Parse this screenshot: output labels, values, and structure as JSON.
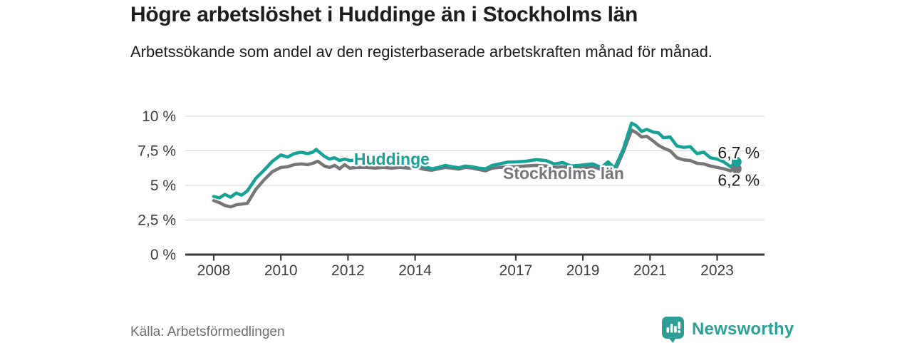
{
  "title": "Högre arbetslöshet i Huddinge än i Stockholms län",
  "subtitle": "Arbetssökande som andel av den registerbaserade arbetskraften månad för månad.",
  "source": "Källa: Arbetsförmedlingen",
  "branding": {
    "logo_text": "Newsworthy"
  },
  "colors": {
    "huddinge": "#16a296",
    "stockholm": "#76767a",
    "grid": "#dcdcdc",
    "axis": "#3a3a3a",
    "tick_text": "#3d3d3d",
    "value_text": "#1d1d1b",
    "brand_teal": "#2f9f95"
  },
  "chart_data": {
    "type": "line",
    "title": "Högre arbetslöshet i Huddinge än i Stockholms län",
    "x_axis": {
      "ticks": [
        2008,
        2010,
        2012,
        2014,
        2017,
        2019,
        2021,
        2023
      ],
      "range": [
        2007.1,
        2024.4
      ]
    },
    "y_axis": {
      "tick_values": [
        0,
        2.5,
        5,
        7.5,
        10
      ],
      "tick_labels": [
        "0 %",
        "2,5 %",
        "5 %",
        "7,5 %",
        "10 %"
      ],
      "range": [
        0,
        10
      ],
      "unit": "%",
      "grid": true
    },
    "legend_position": "inline-labels",
    "series": [
      {
        "name": "Stockholms län",
        "color": "#76767a",
        "end_label": "6,2 %",
        "end_value": 6.2,
        "end_label_dy": 24,
        "points": [
          [
            2008.0,
            3.9
          ],
          [
            2008.17,
            3.75
          ],
          [
            2008.33,
            3.55
          ],
          [
            2008.5,
            3.45
          ],
          [
            2008.67,
            3.6
          ],
          [
            2008.83,
            3.65
          ],
          [
            2009.0,
            3.7
          ],
          [
            2009.25,
            4.7
          ],
          [
            2009.5,
            5.4
          ],
          [
            2009.75,
            6.0
          ],
          [
            2010.0,
            6.3
          ],
          [
            2010.2,
            6.35
          ],
          [
            2010.4,
            6.5
          ],
          [
            2010.6,
            6.55
          ],
          [
            2010.8,
            6.5
          ],
          [
            2010.95,
            6.6
          ],
          [
            2011.1,
            6.75
          ],
          [
            2011.3,
            6.4
          ],
          [
            2011.45,
            6.3
          ],
          [
            2011.6,
            6.45
          ],
          [
            2011.75,
            6.2
          ],
          [
            2011.9,
            6.5
          ],
          [
            2012.05,
            6.25
          ],
          [
            2012.3,
            6.3
          ],
          [
            2012.55,
            6.3
          ],
          [
            2012.8,
            6.25
          ],
          [
            2013.05,
            6.3
          ],
          [
            2013.3,
            6.25
          ],
          [
            2013.55,
            6.3
          ],
          [
            2013.8,
            6.25
          ],
          [
            2014.05,
            6.3
          ],
          [
            2014.3,
            6.15
          ],
          [
            2014.5,
            6.1
          ],
          [
            2014.7,
            6.2
          ],
          [
            2014.9,
            6.3
          ],
          [
            2015.1,
            6.25
          ],
          [
            2015.3,
            6.18
          ],
          [
            2015.5,
            6.3
          ],
          [
            2015.7,
            6.25
          ],
          [
            2015.9,
            6.15
          ],
          [
            2016.1,
            6.05
          ],
          [
            2016.3,
            6.25
          ],
          [
            2016.5,
            6.3
          ],
          [
            2016.75,
            6.33
          ],
          [
            2017.0,
            6.35
          ],
          [
            2017.3,
            6.4
          ],
          [
            2017.6,
            6.45
          ],
          [
            2017.9,
            6.4
          ],
          [
            2018.15,
            6.3
          ],
          [
            2018.4,
            6.35
          ],
          [
            2018.65,
            6.25
          ],
          [
            2018.9,
            6.3
          ],
          [
            2019.1,
            6.3
          ],
          [
            2019.3,
            6.35
          ],
          [
            2019.55,
            6.15
          ],
          [
            2019.75,
            6.45
          ],
          [
            2019.95,
            6.0
          ],
          [
            2020.2,
            7.4
          ],
          [
            2020.45,
            9.0
          ],
          [
            2020.6,
            8.8
          ],
          [
            2020.75,
            8.5
          ],
          [
            2020.9,
            8.55
          ],
          [
            2021.1,
            8.2
          ],
          [
            2021.25,
            7.9
          ],
          [
            2021.4,
            7.7
          ],
          [
            2021.6,
            7.5
          ],
          [
            2021.8,
            7.0
          ],
          [
            2022.0,
            6.85
          ],
          [
            2022.2,
            6.8
          ],
          [
            2022.4,
            6.6
          ],
          [
            2022.6,
            6.55
          ],
          [
            2022.8,
            6.4
          ],
          [
            2023.0,
            6.3
          ],
          [
            2023.2,
            6.2
          ],
          [
            2023.4,
            6.05
          ],
          [
            2023.5,
            6.3
          ],
          [
            2023.58,
            6.2
          ]
        ]
      },
      {
        "name": "Huddinge",
        "color": "#16a296",
        "end_label": "6,7 %",
        "end_value": 6.7,
        "end_label_dy": -5,
        "points": [
          [
            2008.0,
            4.2
          ],
          [
            2008.17,
            4.1
          ],
          [
            2008.33,
            4.35
          ],
          [
            2008.5,
            4.15
          ],
          [
            2008.67,
            4.45
          ],
          [
            2008.83,
            4.3
          ],
          [
            2009.0,
            4.6
          ],
          [
            2009.25,
            5.5
          ],
          [
            2009.5,
            6.1
          ],
          [
            2009.75,
            6.75
          ],
          [
            2010.0,
            7.2
          ],
          [
            2010.2,
            7.05
          ],
          [
            2010.4,
            7.3
          ],
          [
            2010.6,
            7.4
          ],
          [
            2010.8,
            7.3
          ],
          [
            2010.95,
            7.4
          ],
          [
            2011.05,
            7.6
          ],
          [
            2011.3,
            7.1
          ],
          [
            2011.45,
            6.9
          ],
          [
            2011.6,
            7.0
          ],
          [
            2011.75,
            6.8
          ],
          [
            2011.9,
            6.9
          ],
          [
            2012.05,
            6.8
          ],
          [
            2012.3,
            6.85
          ],
          [
            2012.55,
            6.75
          ],
          [
            2012.8,
            6.7
          ],
          [
            2013.05,
            6.6
          ],
          [
            2013.3,
            6.55
          ],
          [
            2013.55,
            6.5
          ],
          [
            2013.8,
            6.45
          ],
          [
            2014.05,
            6.5
          ],
          [
            2014.3,
            6.35
          ],
          [
            2014.5,
            6.2
          ],
          [
            2014.7,
            6.3
          ],
          [
            2014.9,
            6.45
          ],
          [
            2015.1,
            6.35
          ],
          [
            2015.3,
            6.28
          ],
          [
            2015.5,
            6.4
          ],
          [
            2015.7,
            6.35
          ],
          [
            2015.9,
            6.25
          ],
          [
            2016.1,
            6.2
          ],
          [
            2016.3,
            6.45
          ],
          [
            2016.5,
            6.55
          ],
          [
            2016.75,
            6.68
          ],
          [
            2017.0,
            6.7
          ],
          [
            2017.3,
            6.75
          ],
          [
            2017.6,
            6.86
          ],
          [
            2017.9,
            6.8
          ],
          [
            2018.15,
            6.55
          ],
          [
            2018.4,
            6.65
          ],
          [
            2018.65,
            6.4
          ],
          [
            2018.9,
            6.45
          ],
          [
            2019.1,
            6.5
          ],
          [
            2019.3,
            6.55
          ],
          [
            2019.55,
            6.3
          ],
          [
            2019.75,
            6.7
          ],
          [
            2019.95,
            6.25
          ],
          [
            2020.2,
            7.6
          ],
          [
            2020.45,
            9.5
          ],
          [
            2020.6,
            9.3
          ],
          [
            2020.75,
            8.9
          ],
          [
            2020.9,
            9.05
          ],
          [
            2021.1,
            8.85
          ],
          [
            2021.25,
            8.8
          ],
          [
            2021.4,
            8.45
          ],
          [
            2021.6,
            8.5
          ],
          [
            2021.8,
            7.85
          ],
          [
            2022.0,
            7.75
          ],
          [
            2022.2,
            7.8
          ],
          [
            2022.4,
            7.3
          ],
          [
            2022.6,
            7.4
          ],
          [
            2022.8,
            7.0
          ],
          [
            2023.0,
            6.9
          ],
          [
            2023.2,
            6.7
          ],
          [
            2023.4,
            6.35
          ],
          [
            2023.58,
            6.7
          ]
        ]
      }
    ],
    "series_labels": [
      {
        "text": "Huddinge",
        "year": 2012.18,
        "value": 6.49,
        "color": "#16a296"
      },
      {
        "text": "Stockholms län",
        "year": 2016.62,
        "value": 5.46,
        "color": "#76767a"
      }
    ]
  }
}
